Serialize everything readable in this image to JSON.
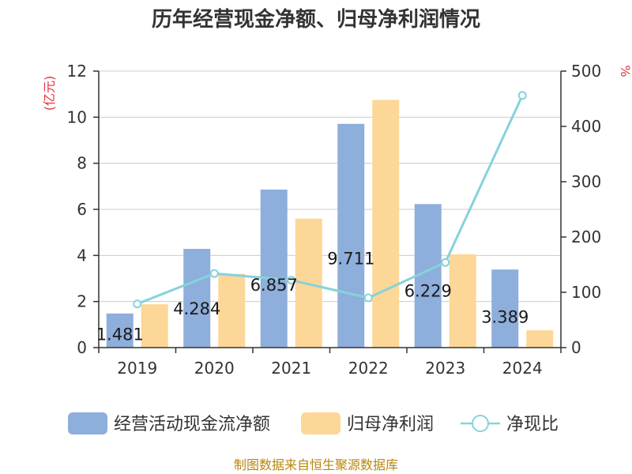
{
  "chart_data": {
    "type": "bar",
    "title": "历年经营现金净额、归母净利润情况",
    "categories": [
      "2019",
      "2020",
      "2021",
      "2022",
      "2023",
      "2024"
    ],
    "left_axis": {
      "unit": "(亿元)",
      "ylim": [
        0,
        12
      ],
      "ticks": [
        "0",
        "2",
        "4",
        "6",
        "8",
        "10",
        "12"
      ]
    },
    "right_axis": {
      "unit": "%",
      "ylim": [
        0,
        500
      ],
      "ticks": [
        "0",
        "100",
        "200",
        "300",
        "400",
        "500"
      ]
    },
    "series": [
      {
        "name": "经营活动现金流净额",
        "type": "bar",
        "axis": "left",
        "color": "#8eaedb",
        "values": [
          1.481,
          4.284,
          6.857,
          9.711,
          6.229,
          3.389
        ],
        "labels": [
          "1.481",
          "4.284",
          "6.857",
          "9.711",
          "6.229",
          "3.389"
        ]
      },
      {
        "name": "归母净利润",
        "type": "bar",
        "axis": "left",
        "color": "#fdd797",
        "values": [
          1.88,
          3.2,
          5.6,
          10.75,
          4.05,
          0.75
        ]
      },
      {
        "name": "净现比",
        "type": "line",
        "axis": "right",
        "color": "#86d2dc",
        "values": [
          79,
          134,
          122,
          90,
          154,
          456
        ]
      }
    ],
    "source": "制图数据来自恒生聚源数据库"
  }
}
